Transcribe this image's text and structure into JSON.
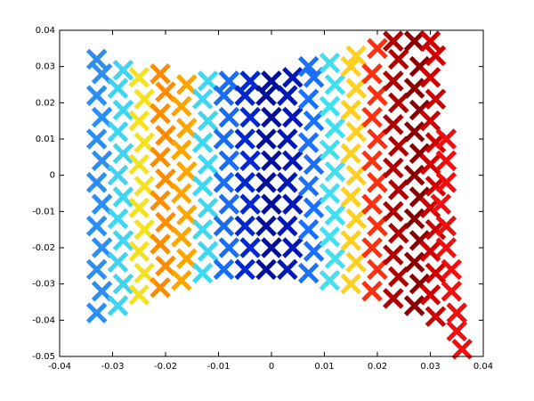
{
  "chart_data": {
    "type": "scatter",
    "marker": "x",
    "xlim": [
      -0.04,
      0.04
    ],
    "xticks": [
      -0.04,
      -0.03,
      -0.02,
      -0.01,
      0,
      0.01,
      0.02,
      0.03,
      0.04
    ],
    "ylim": [
      -0.05,
      0.04
    ],
    "yticks": [
      -0.05,
      -0.04,
      -0.03,
      -0.02,
      -0.01,
      0,
      0.01,
      0.02,
      0.03,
      0.04
    ],
    "series": [
      {
        "color": "#2a8ef5",
        "x": [
          -0.033,
          -0.032,
          -0.033,
          -0.032,
          -0.033,
          -0.032,
          -0.033,
          -0.032,
          -0.033,
          -0.032,
          -0.033,
          -0.032,
          -0.033
        ],
        "values": [
          -0.038,
          -0.032,
          -0.026,
          -0.02,
          -0.014,
          -0.008,
          -0.002,
          0.004,
          0.01,
          0.016,
          0.022,
          0.028,
          0.032
        ]
      },
      {
        "color": "#3fd4ef",
        "x": [
          -0.029,
          -0.028,
          -0.029,
          -0.028,
          -0.029,
          -0.028,
          -0.029,
          -0.028,
          -0.029,
          -0.028,
          -0.029,
          -0.028
        ],
        "values": [
          -0.036,
          -0.03,
          -0.024,
          -0.018,
          -0.012,
          -0.006,
          0,
          0.006,
          0.012,
          0.018,
          0.024,
          0.029
        ]
      },
      {
        "color": "#f5e21e",
        "x": [
          -0.025,
          -0.024,
          -0.025,
          -0.024,
          -0.025,
          -0.024,
          -0.025,
          -0.024,
          -0.025,
          -0.024,
          -0.025
        ],
        "values": [
          -0.033,
          -0.027,
          -0.021,
          -0.015,
          -0.009,
          -0.003,
          0.003,
          0.009,
          0.015,
          0.021,
          0.027
        ]
      },
      {
        "color": "#ff8c00",
        "x": [
          -0.021,
          -0.02,
          -0.021,
          -0.02,
          -0.021,
          -0.02,
          -0.021,
          -0.02,
          -0.021,
          -0.02,
          -0.021
        ],
        "values": [
          -0.031,
          -0.025,
          -0.019,
          -0.013,
          -0.007,
          -0.001,
          0.005,
          0.011,
          0.017,
          0.023,
          0.028
        ]
      },
      {
        "color": "#ffa500",
        "x": [
          -0.017,
          -0.016,
          -0.017,
          -0.016,
          -0.017,
          -0.016,
          -0.017,
          -0.016,
          -0.017,
          -0.016
        ],
        "values": [
          -0.029,
          -0.023,
          -0.017,
          -0.011,
          -0.005,
          0.001,
          0.007,
          0.013,
          0.019,
          0.025
        ]
      },
      {
        "color": "#40d8f0",
        "x": [
          -0.013,
          -0.012,
          -0.013,
          -0.012,
          -0.013,
          -0.012,
          -0.013,
          -0.012,
          -0.013,
          -0.012
        ],
        "values": [
          -0.027,
          -0.021,
          -0.015,
          -0.009,
          -0.003,
          0.003,
          0.009,
          0.015,
          0.021,
          0.026
        ]
      },
      {
        "color": "#1a6cf0",
        "x": [
          -0.009,
          -0.008,
          -0.009,
          -0.008,
          -0.009,
          -0.008,
          -0.009,
          -0.008,
          -0.009,
          -0.008
        ],
        "values": [
          -0.026,
          -0.02,
          -0.014,
          -0.008,
          -0.002,
          0.004,
          0.01,
          0.016,
          0.022,
          0.026
        ]
      },
      {
        "color": "#0028d0",
        "x": [
          -0.005,
          -0.004,
          -0.005,
          -0.004,
          -0.005,
          -0.004,
          -0.005,
          -0.004,
          -0.005,
          -0.004
        ],
        "values": [
          -0.026,
          -0.02,
          -0.014,
          -0.008,
          -0.002,
          0.004,
          0.01,
          0.016,
          0.022,
          0.026
        ]
      },
      {
        "color": "#00109a",
        "x": [
          -0.001,
          0,
          -0.001,
          0,
          -0.001,
          0,
          -0.001,
          0,
          -0.001,
          0
        ],
        "values": [
          -0.026,
          -0.02,
          -0.014,
          -0.008,
          -0.002,
          0.004,
          0.01,
          0.016,
          0.022,
          0.026
        ]
      },
      {
        "color": "#0018b8",
        "x": [
          0.003,
          0.004,
          0.003,
          0.004,
          0.003,
          0.004,
          0.003,
          0.004,
          0.003,
          0.004
        ],
        "values": [
          -0.026,
          -0.02,
          -0.014,
          -0.008,
          -0.002,
          0.004,
          0.01,
          0.016,
          0.022,
          0.027
        ]
      },
      {
        "color": "#1a70ff",
        "x": [
          0.007,
          0.008,
          0.007,
          0.008,
          0.007,
          0.008,
          0.007,
          0.008,
          0.007,
          0.008,
          0.007
        ],
        "values": [
          -0.027,
          -0.021,
          -0.015,
          -0.009,
          -0.003,
          0.003,
          0.009,
          0.015,
          0.021,
          0.027,
          0.03
        ]
      },
      {
        "color": "#40e0f0",
        "x": [
          0.011,
          0.012,
          0.011,
          0.012,
          0.011,
          0.012,
          0.011,
          0.012,
          0.011,
          0.012,
          0.011
        ],
        "values": [
          -0.029,
          -0.023,
          -0.017,
          -0.011,
          -0.005,
          0.001,
          0.007,
          0.013,
          0.019,
          0.025,
          0.031
        ]
      },
      {
        "color": "#ffd020",
        "x": [
          0.015,
          0.016,
          0.015,
          0.016,
          0.015,
          0.016,
          0.015,
          0.016,
          0.015,
          0.016,
          0.015,
          0.016
        ],
        "values": [
          -0.03,
          -0.024,
          -0.018,
          -0.012,
          -0.006,
          0,
          0.006,
          0.012,
          0.018,
          0.024,
          0.03,
          0.033
        ]
      },
      {
        "color": "#ff3010",
        "x": [
          0.019,
          0.02,
          0.019,
          0.02,
          0.019,
          0.02,
          0.019,
          0.02,
          0.019,
          0.02,
          0.019,
          0.02
        ],
        "values": [
          -0.032,
          -0.026,
          -0.02,
          -0.014,
          -0.008,
          -0.002,
          0.004,
          0.01,
          0.016,
          0.022,
          0.028,
          0.035
        ]
      },
      {
        "color": "#b00000",
        "x": [
          0.023,
          0.024,
          0.023,
          0.024,
          0.023,
          0.024,
          0.023,
          0.024,
          0.023,
          0.024,
          0.023,
          0.024,
          0.023
        ],
        "values": [
          -0.034,
          -0.028,
          -0.022,
          -0.016,
          -0.01,
          -0.004,
          0.002,
          0.008,
          0.014,
          0.02,
          0.026,
          0.032,
          0.037
        ]
      },
      {
        "color": "#8a0000",
        "x": [
          0.027,
          0.028,
          0.027,
          0.028,
          0.027,
          0.028,
          0.027,
          0.028,
          0.027,
          0.028,
          0.027,
          0.028,
          0.027
        ],
        "values": [
          -0.036,
          -0.03,
          -0.024,
          -0.018,
          -0.012,
          -0.006,
          0,
          0.006,
          0.012,
          0.018,
          0.024,
          0.03,
          0.037
        ]
      },
      {
        "color": "#d00000",
        "x": [
          0.031,
          0.03,
          0.031,
          0.03,
          0.031,
          0.03,
          0.031,
          0.03,
          0.031,
          0.03,
          0.031,
          0.03,
          0.031,
          0.03
        ],
        "values": [
          -0.039,
          -0.033,
          -0.027,
          -0.021,
          -0.015,
          -0.009,
          -0.003,
          0.003,
          0.009,
          0.015,
          0.021,
          0.027,
          0.033,
          0.037
        ]
      },
      {
        "color": "#ee1010",
        "x": [
          0.033,
          0.033,
          0.033,
          0.032,
          0.033,
          0.033,
          0.034,
          0.034,
          0.035,
          0.035,
          0.036
        ],
        "values": [
          0.01,
          0.004,
          -0.002,
          -0.008,
          -0.014,
          -0.02,
          -0.026,
          -0.032,
          -0.038,
          -0.043,
          -0.048
        ]
      }
    ]
  }
}
